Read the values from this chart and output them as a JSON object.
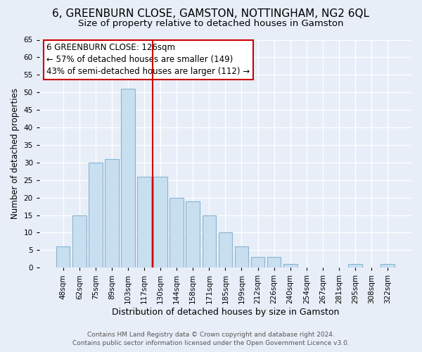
{
  "title": "6, GREENBURN CLOSE, GAMSTON, NOTTINGHAM, NG2 6QL",
  "subtitle": "Size of property relative to detached houses in Gamston",
  "xlabel": "Distribution of detached houses by size in Gamston",
  "ylabel": "Number of detached properties",
  "bar_labels": [
    "48sqm",
    "62sqm",
    "75sqm",
    "89sqm",
    "103sqm",
    "117sqm",
    "130sqm",
    "144sqm",
    "158sqm",
    "171sqm",
    "185sqm",
    "199sqm",
    "212sqm",
    "226sqm",
    "240sqm",
    "254sqm",
    "267sqm",
    "281sqm",
    "295sqm",
    "308sqm",
    "322sqm"
  ],
  "bar_values": [
    6,
    15,
    30,
    31,
    51,
    26,
    26,
    20,
    19,
    15,
    10,
    6,
    3,
    3,
    1,
    0,
    0,
    0,
    1,
    0,
    1
  ],
  "bar_color": "#c8dff0",
  "bar_edge_color": "#8ab4d0",
  "ylim": [
    0,
    65
  ],
  "yticks": [
    0,
    5,
    10,
    15,
    20,
    25,
    30,
    35,
    40,
    45,
    50,
    55,
    60,
    65
  ],
  "vline_x": 6.0,
  "vline_color": "#cc0000",
  "annotation_title": "6 GREENBURN CLOSE: 126sqm",
  "annotation_line1": "← 57% of detached houses are smaller (149)",
  "annotation_line2": "43% of semi-detached houses are larger (112) →",
  "annotation_box_color": "#ffffff",
  "annotation_box_edge": "#cc0000",
  "footer1": "Contains HM Land Registry data © Crown copyright and database right 2024.",
  "footer2": "Contains public sector information licensed under the Open Government Licence v3.0.",
  "background_color": "#e8eef8",
  "plot_bg_color": "#e8eef8",
  "grid_color": "#ffffff",
  "title_fontsize": 11,
  "subtitle_fontsize": 9.5,
  "xlabel_fontsize": 9,
  "ylabel_fontsize": 8.5,
  "tick_fontsize": 7.5,
  "footer_fontsize": 6.5,
  "annotation_title_fontsize": 9,
  "annotation_body_fontsize": 8.5
}
